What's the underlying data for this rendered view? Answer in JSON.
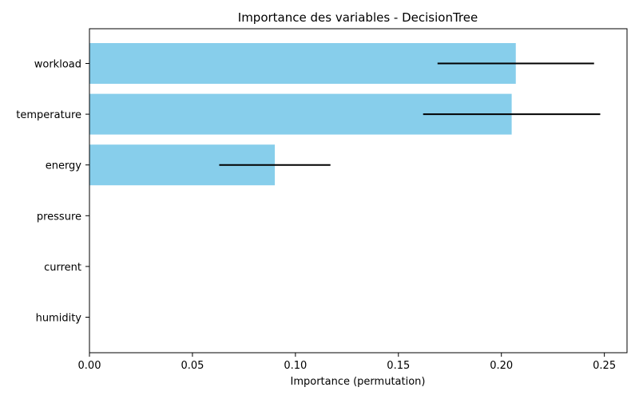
{
  "chart_data": {
    "type": "bar",
    "orientation": "horizontal",
    "title": "Importance des variables - DecisionTree",
    "xlabel": "Importance (permutation)",
    "ylabel": "",
    "xlim": [
      0,
      0.261
    ],
    "xticks": [
      0.0,
      0.05,
      0.1,
      0.15,
      0.2,
      0.25
    ],
    "xtick_labels": [
      "0.00",
      "0.05",
      "0.10",
      "0.15",
      "0.20",
      "0.25"
    ],
    "grid": false,
    "legend": false,
    "bar_color": "#87CEEB",
    "errorbar_color": "#000000",
    "categories": [
      "workload",
      "temperature",
      "energy",
      "pressure",
      "current",
      "humidity"
    ],
    "values": [
      0.207,
      0.205,
      0.09,
      0.0,
      0.0,
      0.0
    ],
    "errors": [
      0.038,
      0.043,
      0.027,
      0.0,
      0.0,
      0.0
    ]
  }
}
